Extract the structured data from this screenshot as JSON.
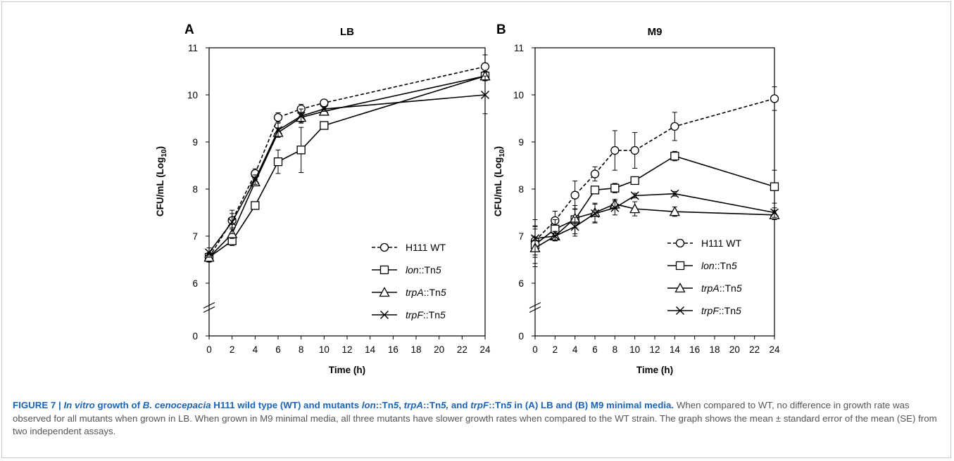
{
  "figure": {
    "caption_head_parts": [
      {
        "t": "FIGURE 7 | ",
        "i": false
      },
      {
        "t": "In vitro",
        "i": true
      },
      {
        "t": " growth of ",
        "i": false
      },
      {
        "t": "B. cenocepacia",
        "i": true
      },
      {
        "t": " H111 wild type (WT) and mutants ",
        "i": false
      },
      {
        "t": "lon",
        "i": true
      },
      {
        "t": "::Tn",
        "i": false
      },
      {
        "t": "5",
        "i": true
      },
      {
        "t": ", ",
        "i": false
      },
      {
        "t": "trpA",
        "i": true
      },
      {
        "t": "::Tn",
        "i": false
      },
      {
        "t": "5,",
        "i": true
      },
      {
        "t": " and ",
        "i": false
      },
      {
        "t": "trpF",
        "i": true
      },
      {
        "t": "::Tn",
        "i": false
      },
      {
        "t": "5",
        "i": true
      },
      {
        "t": " in (A) LB and (B) M9 minimal media.",
        "i": false
      }
    ],
    "caption_body": "When compared to WT, no difference in growth rate was observed for all mutants when grown in LB. When grown in M9 minimal media, all three mutants have slower growth rates when compared to the WT strain. The graph shows the mean ± standard error of the mean (SE) from two independent assays."
  },
  "colors": {
    "series": "#000000",
    "caption_head": "#1a63b5",
    "caption_body": "#555555"
  },
  "chart_data": [
    {
      "panel": "A",
      "type": "line",
      "title": "LB",
      "xlabel": "Time (h)",
      "ylabel_main": "CFU/mL (Log",
      "ylabel_sub": "10",
      "ylabel_end": ")",
      "xlim": [
        0,
        24
      ],
      "ylim": [
        6,
        11
      ],
      "y_break": true,
      "xticks": [
        0,
        2,
        4,
        6,
        8,
        10,
        12,
        14,
        16,
        18,
        20,
        22,
        24
      ],
      "yticks": [
        6,
        7,
        8,
        9,
        10,
        11
      ],
      "ybreak_label": "0",
      "legend_position": "bottom-right",
      "series": [
        {
          "name_parts": [
            {
              "t": "H111 WT",
              "i": false
            }
          ],
          "marker": "circle",
          "dash": true,
          "x": [
            0,
            2,
            4,
            6,
            8,
            10,
            24
          ],
          "y": [
            6.55,
            7.33,
            8.33,
            9.52,
            9.7,
            9.83,
            10.6
          ],
          "err": [
            0.1,
            0.15,
            0.1,
            0.1,
            0.1,
            0.05,
            0.25
          ]
        },
        {
          "name_parts": [
            {
              "t": "lon",
              "i": true
            },
            {
              "t": "::Tn",
              "i": false
            },
            {
              "t": "5",
              "i": true
            }
          ],
          "marker": "square",
          "dash": false,
          "x": [
            0,
            2,
            4,
            6,
            8,
            10,
            24
          ],
          "y": [
            6.55,
            6.9,
            7.65,
            8.58,
            8.83,
            9.35,
            10.4
          ],
          "err": [
            0.1,
            0.1,
            0.05,
            0.25,
            0.48,
            0.05,
            0.1
          ]
        },
        {
          "name_parts": [
            {
              "t": "trpA",
              "i": true
            },
            {
              "t": "::Tn",
              "i": false
            },
            {
              "t": "5",
              "i": true
            }
          ],
          "marker": "triangle",
          "dash": false,
          "x": [
            0,
            2,
            4,
            6,
            8,
            10,
            24
          ],
          "y": [
            6.55,
            7.05,
            8.15,
            9.2,
            9.52,
            9.65,
            10.4
          ],
          "err": [
            0.1,
            0.1,
            0.05,
            0.1,
            0.1,
            0.05,
            0.1
          ]
        },
        {
          "name_parts": [
            {
              "t": "trpF",
              "i": true
            },
            {
              "t": "::Tn",
              "i": false
            },
            {
              "t": "5",
              "i": true
            }
          ],
          "marker": "x",
          "dash": false,
          "x": [
            0,
            2,
            4,
            6,
            8,
            10,
            24
          ],
          "y": [
            6.65,
            7.3,
            8.2,
            9.25,
            9.55,
            9.7,
            10.0
          ],
          "err": [
            0.1,
            0.25,
            0.1,
            0.15,
            0.15,
            0.05,
            0.4
          ]
        }
      ]
    },
    {
      "panel": "B",
      "type": "line",
      "title": "M9",
      "xlabel": "Time (h)",
      "ylabel_main": "CFU/mL (Log",
      "ylabel_sub": "10",
      "ylabel_end": ")",
      "xlim": [
        0,
        24
      ],
      "ylim": [
        6,
        11
      ],
      "y_break": true,
      "xticks": [
        0,
        2,
        4,
        6,
        8,
        10,
        12,
        14,
        16,
        18,
        20,
        22,
        24
      ],
      "yticks": [
        6,
        7,
        8,
        9,
        10,
        11
      ],
      "ybreak_label": "0",
      "legend_position": "bottom-right",
      "series": [
        {
          "name_parts": [
            {
              "t": "H111 WT",
              "i": false
            }
          ],
          "marker": "circle",
          "dash": true,
          "x": [
            0,
            2,
            4,
            6,
            8,
            10,
            14,
            24
          ],
          "y": [
            6.9,
            7.33,
            7.87,
            8.32,
            8.82,
            8.82,
            9.33,
            9.92
          ],
          "err": [
            0.3,
            0.2,
            0.3,
            0.15,
            0.42,
            0.38,
            0.3,
            0.25
          ]
        },
        {
          "name_parts": [
            {
              "t": "lon",
              "i": true
            },
            {
              "t": "::Tn",
              "i": false
            },
            {
              "t": "5",
              "i": true
            }
          ],
          "marker": "square",
          "dash": false,
          "x": [
            0,
            2,
            4,
            6,
            8,
            10,
            14,
            24
          ],
          "y": [
            6.82,
            7.15,
            7.35,
            7.98,
            8.02,
            8.18,
            8.7,
            8.05
          ],
          "err": [
            0.4,
            0.2,
            0.3,
            0.05,
            0.1,
            0.05,
            0.1,
            0.35
          ]
        },
        {
          "name_parts": [
            {
              "t": "trpA",
              "i": true
            },
            {
              "t": "::Tn",
              "i": false
            },
            {
              "t": "5",
              "i": true
            }
          ],
          "marker": "triangle",
          "dash": false,
          "x": [
            0,
            2,
            4,
            6,
            8,
            10,
            14,
            24
          ],
          "y": [
            6.75,
            7.0,
            7.38,
            7.5,
            7.68,
            7.58,
            7.52,
            7.45
          ],
          "err": [
            0.4,
            0.1,
            0.2,
            0.2,
            0.1,
            0.15,
            0.1,
            0.1
          ]
        },
        {
          "name_parts": [
            {
              "t": "trpF",
              "i": true
            },
            {
              "t": "::Tn",
              "i": false
            },
            {
              "t": "5",
              "i": true
            }
          ],
          "marker": "x",
          "dash": false,
          "x": [
            0,
            2,
            4,
            6,
            8,
            10,
            14,
            24
          ],
          "y": [
            6.95,
            7.0,
            7.2,
            7.48,
            7.6,
            7.86,
            7.9,
            7.5
          ],
          "err": [
            0.4,
            0.1,
            0.2,
            0.2,
            0.15,
            0.05,
            0.05,
            0.1
          ]
        }
      ]
    }
  ]
}
